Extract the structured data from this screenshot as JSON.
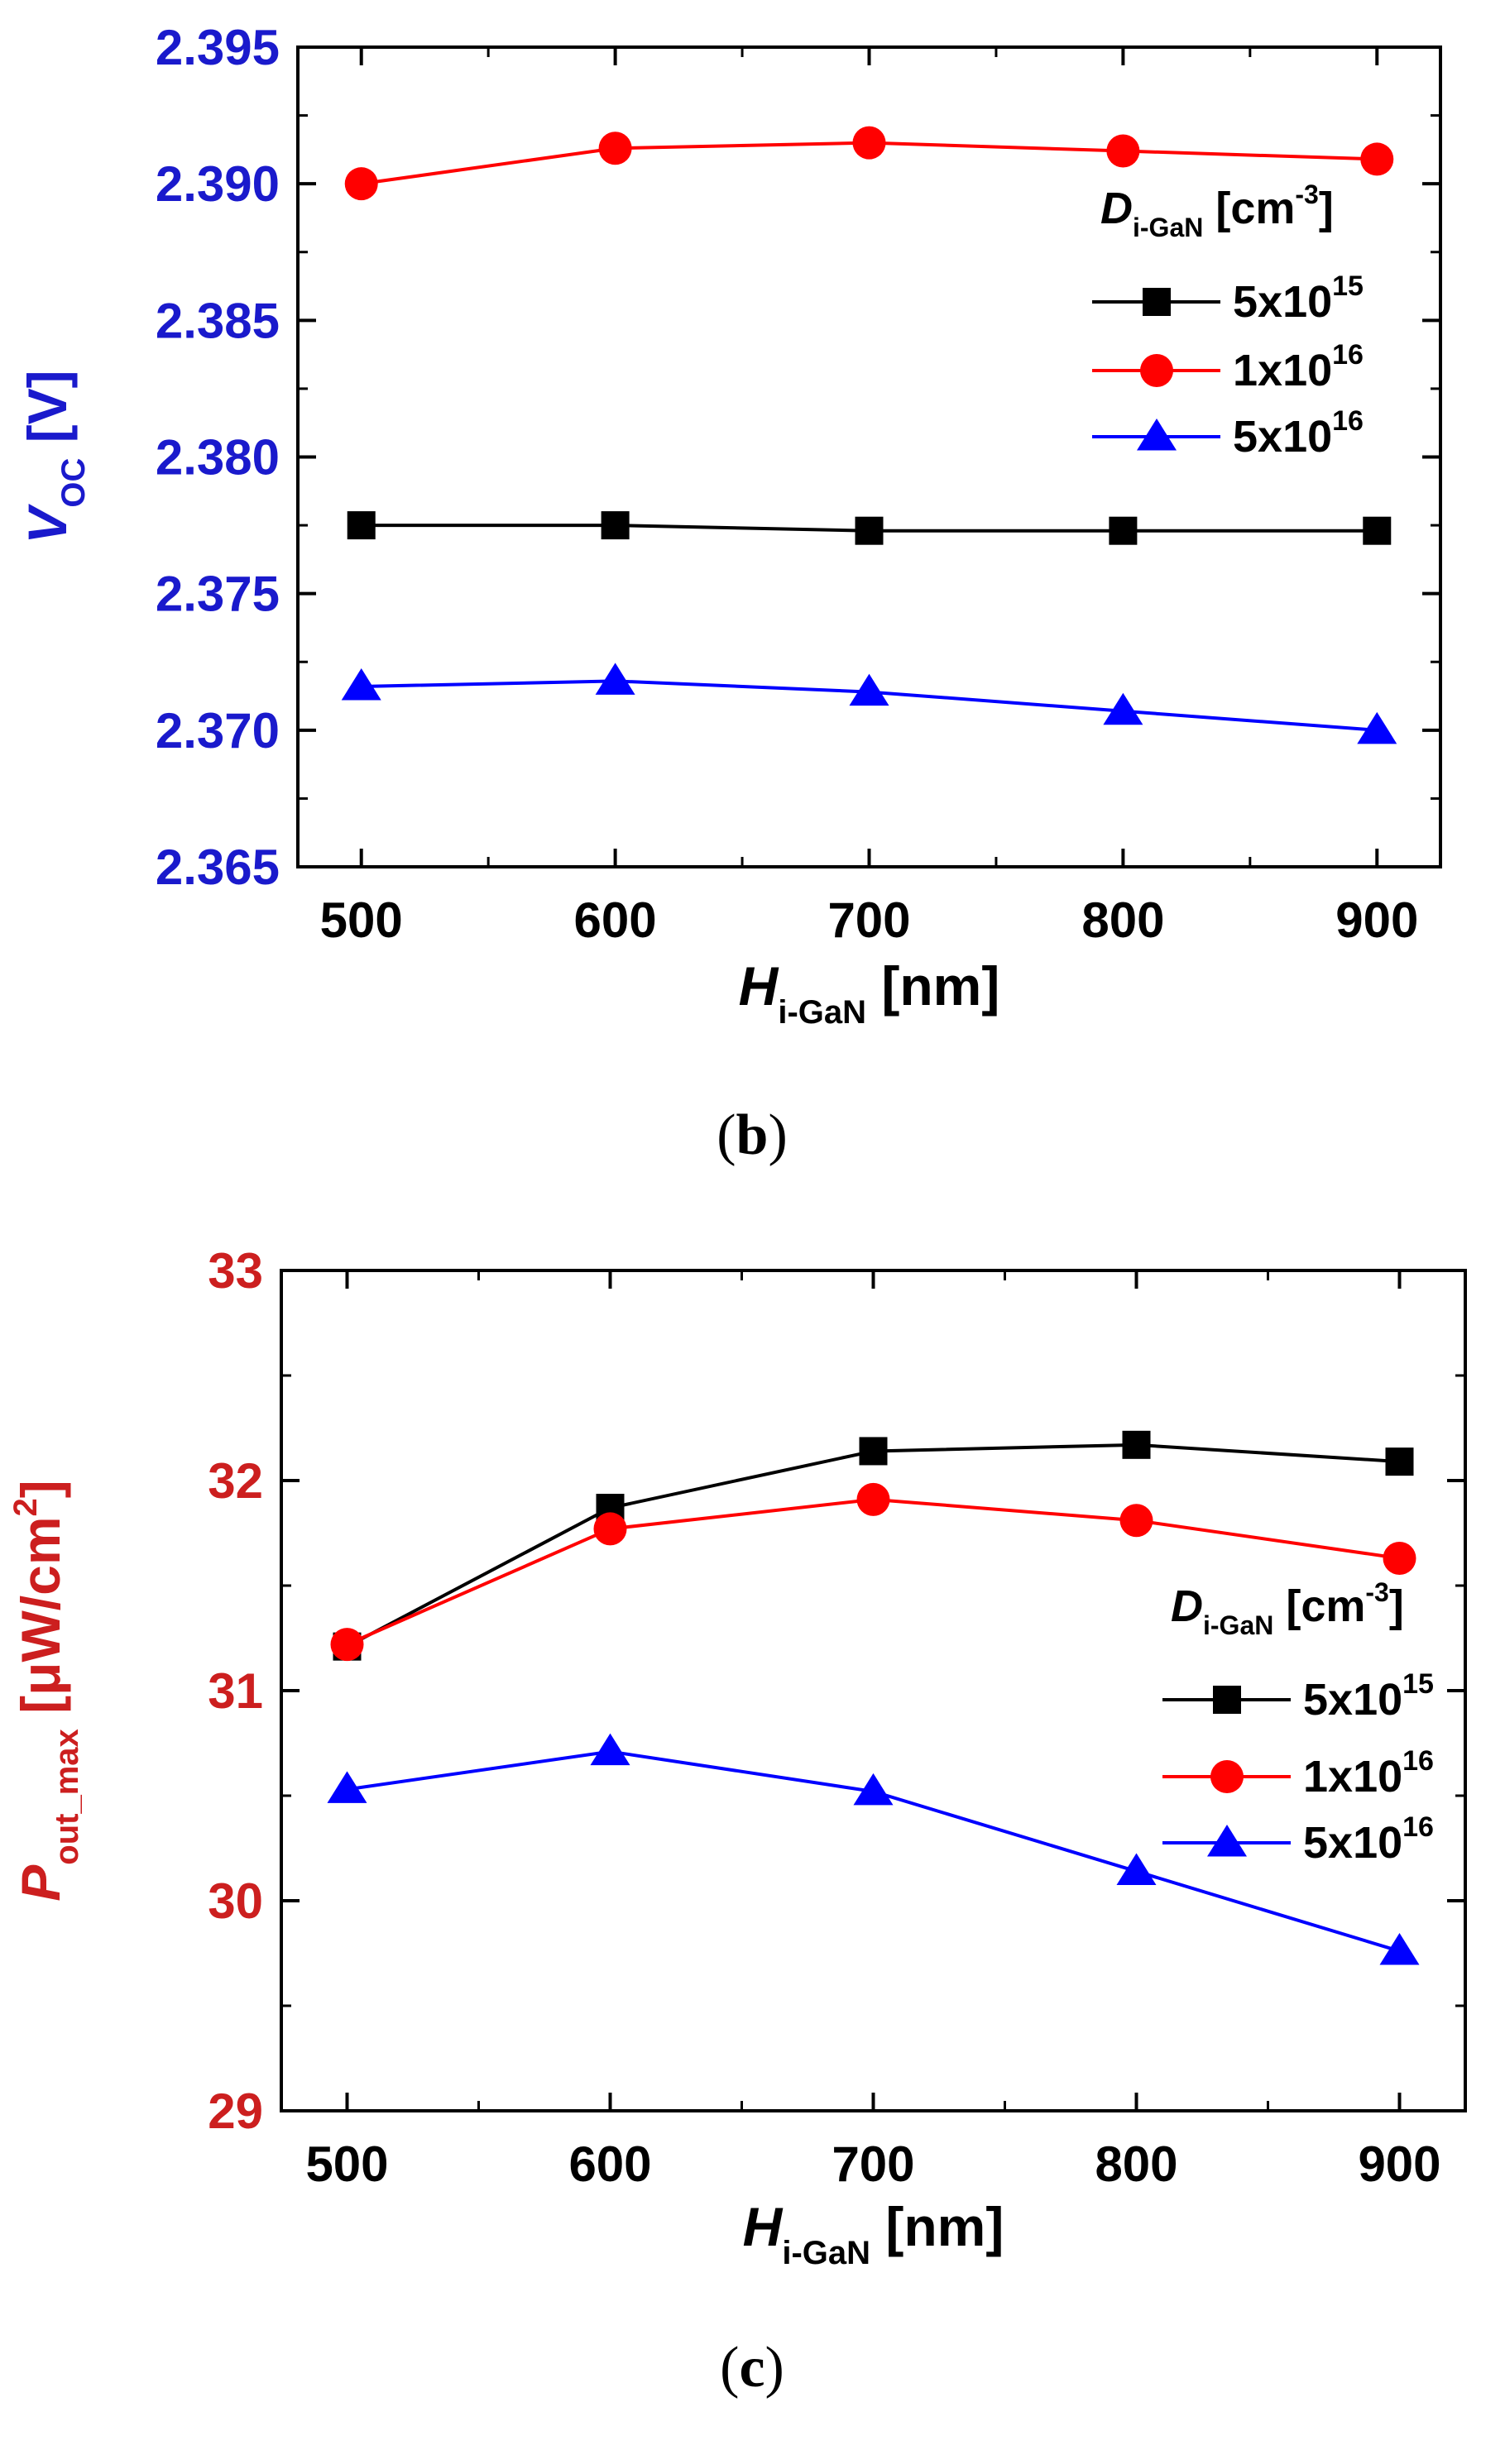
{
  "chart_data": [
    {
      "type": "line",
      "title": "",
      "caption": "b",
      "xlabel_main": "H",
      "xlabel_sub": "i-GaN",
      "xlabel_unit": "[nm]",
      "ylabel_main": "V",
      "ylabel_sub": "OC",
      "ylabel_unit": "[V]",
      "ylabel_color": "#1a1acc",
      "x": [
        500,
        600,
        700,
        800,
        900
      ],
      "xticks": [
        "500",
        "600",
        "700",
        "800",
        "900"
      ],
      "xlim": [
        475,
        925
      ],
      "ylim": [
        2.365,
        2.395
      ],
      "yticks": [
        2.365,
        2.37,
        2.375,
        2.38,
        2.385,
        2.39,
        2.395
      ],
      "ytick_labels": [
        "2.365",
        "2.370",
        "2.375",
        "2.380",
        "2.385",
        "2.390",
        "2.395"
      ],
      "legend_title_main": "D",
      "legend_title_sub": "i-GaN",
      "legend_title_unit": "[cm",
      "legend_title_exp": "-3",
      "legend_title_close": "]",
      "legend_position": "right",
      "series": [
        {
          "name": "5x10",
          "exp": "15",
          "label": "5x10^15",
          "marker": "square",
          "color": "#000000",
          "values": [
            2.3775,
            2.3775,
            2.3773,
            2.3773,
            2.3773
          ]
        },
        {
          "name": "1x10",
          "exp": "16",
          "label": "1x10^16",
          "marker": "circle",
          "color": "#ff0000",
          "values": [
            2.39,
            2.3913,
            2.3915,
            2.3912,
            2.3909
          ]
        },
        {
          "name": "5x10",
          "exp": "16",
          "label": "5x10^16",
          "marker": "triangle",
          "color": "#0000ff",
          "values": [
            2.3716,
            2.3718,
            2.3714,
            2.3707,
            2.37
          ]
        }
      ]
    },
    {
      "type": "line",
      "title": "",
      "caption": "c",
      "xlabel_main": "H",
      "xlabel_sub": "i-GaN",
      "xlabel_unit": "[nm]",
      "ylabel_main": "P",
      "ylabel_sub": "out_max",
      "ylabel_unit": "[μW/cm",
      "ylabel_unit_exp": "2",
      "ylabel_unit_close": "]",
      "ylabel_color": "#cc1f1f",
      "x": [
        500,
        600,
        700,
        800,
        900
      ],
      "xticks": [
        "500",
        "600",
        "700",
        "800",
        "900"
      ],
      "xlim": [
        475,
        925
      ],
      "ylim": [
        29,
        33
      ],
      "yticks": [
        29,
        30,
        31,
        32,
        33
      ],
      "ytick_labels": [
        "29",
        "30",
        "31",
        "32",
        "33"
      ],
      "legend_title_main": "D",
      "legend_title_sub": "i-GaN",
      "legend_title_unit": "[cm",
      "legend_title_exp": "-3",
      "legend_title_close": "]",
      "legend_position": "right",
      "series": [
        {
          "name": "5x10",
          "exp": "15",
          "label": "5x10^15",
          "marker": "square",
          "color": "#000000",
          "values": [
            31.21,
            31.87,
            32.14,
            32.17,
            32.09
          ]
        },
        {
          "name": "1x10",
          "exp": "16",
          "label": "1x10^16",
          "marker": "circle",
          "color": "#ff0000",
          "values": [
            31.22,
            31.77,
            31.91,
            31.81,
            31.63
          ]
        },
        {
          "name": "5x10",
          "exp": "16",
          "label": "5x10^16",
          "marker": "triangle",
          "color": "#0000ff",
          "values": [
            30.53,
            30.71,
            30.52,
            30.14,
            29.76
          ]
        }
      ]
    }
  ]
}
